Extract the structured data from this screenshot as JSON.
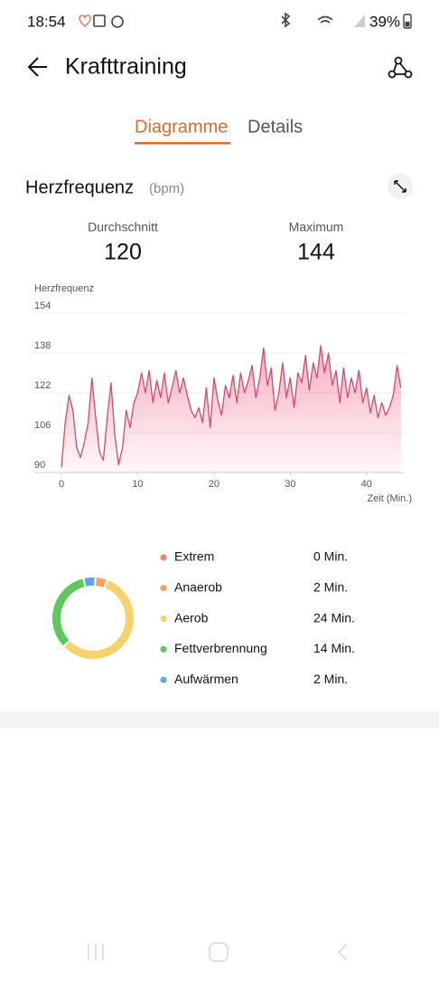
{
  "status_bar": {
    "time": "18:54",
    "battery": "39%"
  },
  "header": {
    "title": "Krafttraining"
  },
  "tabs": [
    "Diagramme",
    "Details"
  ],
  "section": {
    "title": "Herzfrequenz",
    "unit": "(bpm)"
  },
  "stats": [
    {
      "label": "Durchschnitt",
      "value": 120
    },
    {
      "label": "Maximum",
      "value": 144
    }
  ],
  "chart_data": [
    {
      "type": "line",
      "y_label": "Herzfrequenz",
      "x_label": "Zeit (Min.)",
      "color": "#d9486a",
      "x": [
        0,
        0.5,
        1,
        1.5,
        2,
        2.5,
        3,
        3.5,
        4,
        4.5,
        5,
        5.5,
        6,
        6.5,
        7,
        7.5,
        8,
        8.5,
        9,
        9.5,
        10,
        10.5,
        11,
        11.5,
        12,
        12.5,
        13,
        13.5,
        14,
        14.5,
        15,
        15.5,
        16,
        16.5,
        17,
        17.5,
        18,
        18.5,
        19,
        19.5,
        20,
        20.5,
        21,
        21.5,
        22,
        22.5,
        23,
        23.5,
        24,
        24.5,
        25,
        25.5,
        26,
        26.5,
        27,
        27.5,
        28,
        28.5,
        29,
        29.5,
        30,
        30.5,
        31,
        31.5,
        32,
        32.5,
        33,
        33.5,
        34,
        34.5,
        35,
        35.5,
        36,
        36.5,
        37,
        37.5,
        38,
        38.5,
        39,
        39.5,
        40,
        40.5,
        41,
        41.5,
        42,
        42.5,
        43,
        43.5,
        44,
        44.5
      ],
      "values": [
        92,
        110,
        121,
        115,
        100,
        96,
        102,
        110,
        128,
        112,
        98,
        95,
        112,
        126,
        105,
        93,
        100,
        115,
        108,
        118,
        122,
        130,
        122,
        131,
        118,
        127,
        120,
        130,
        118,
        124,
        131,
        122,
        128,
        121,
        115,
        112,
        116,
        110,
        124,
        108,
        128,
        119,
        113,
        125,
        120,
        129,
        118,
        130,
        122,
        127,
        133,
        120,
        128,
        140,
        125,
        132,
        115,
        122,
        134,
        120,
        128,
        116,
        130,
        126,
        137,
        123,
        134,
        128,
        141,
        130,
        138,
        125,
        131,
        118,
        132,
        120,
        128,
        122,
        131,
        118,
        124,
        114,
        121,
        112,
        118,
        113,
        116,
        121,
        133,
        124
      ],
      "xlim": [
        0,
        45
      ],
      "ylim": [
        90,
        154
      ],
      "xticks": [
        0,
        10,
        20,
        30,
        40
      ],
      "yticks": [
        90,
        106,
        122,
        138,
        154
      ],
      "grid": true
    },
    {
      "type": "donut",
      "categories": [
        "Extrem",
        "Anaerob",
        "Aerob",
        "Fettverbrennung",
        "Aufwärmen"
      ],
      "values": [
        0,
        2,
        24,
        14,
        2
      ],
      "value_labels": [
        "0 Min.",
        "2 Min.",
        "24 Min.",
        "14 Min.",
        "2 Min."
      ],
      "colors": [
        "#f07c7c",
        "#f5a163",
        "#f5d36a",
        "#5cc95a",
        "#5aa6f0"
      ]
    }
  ]
}
